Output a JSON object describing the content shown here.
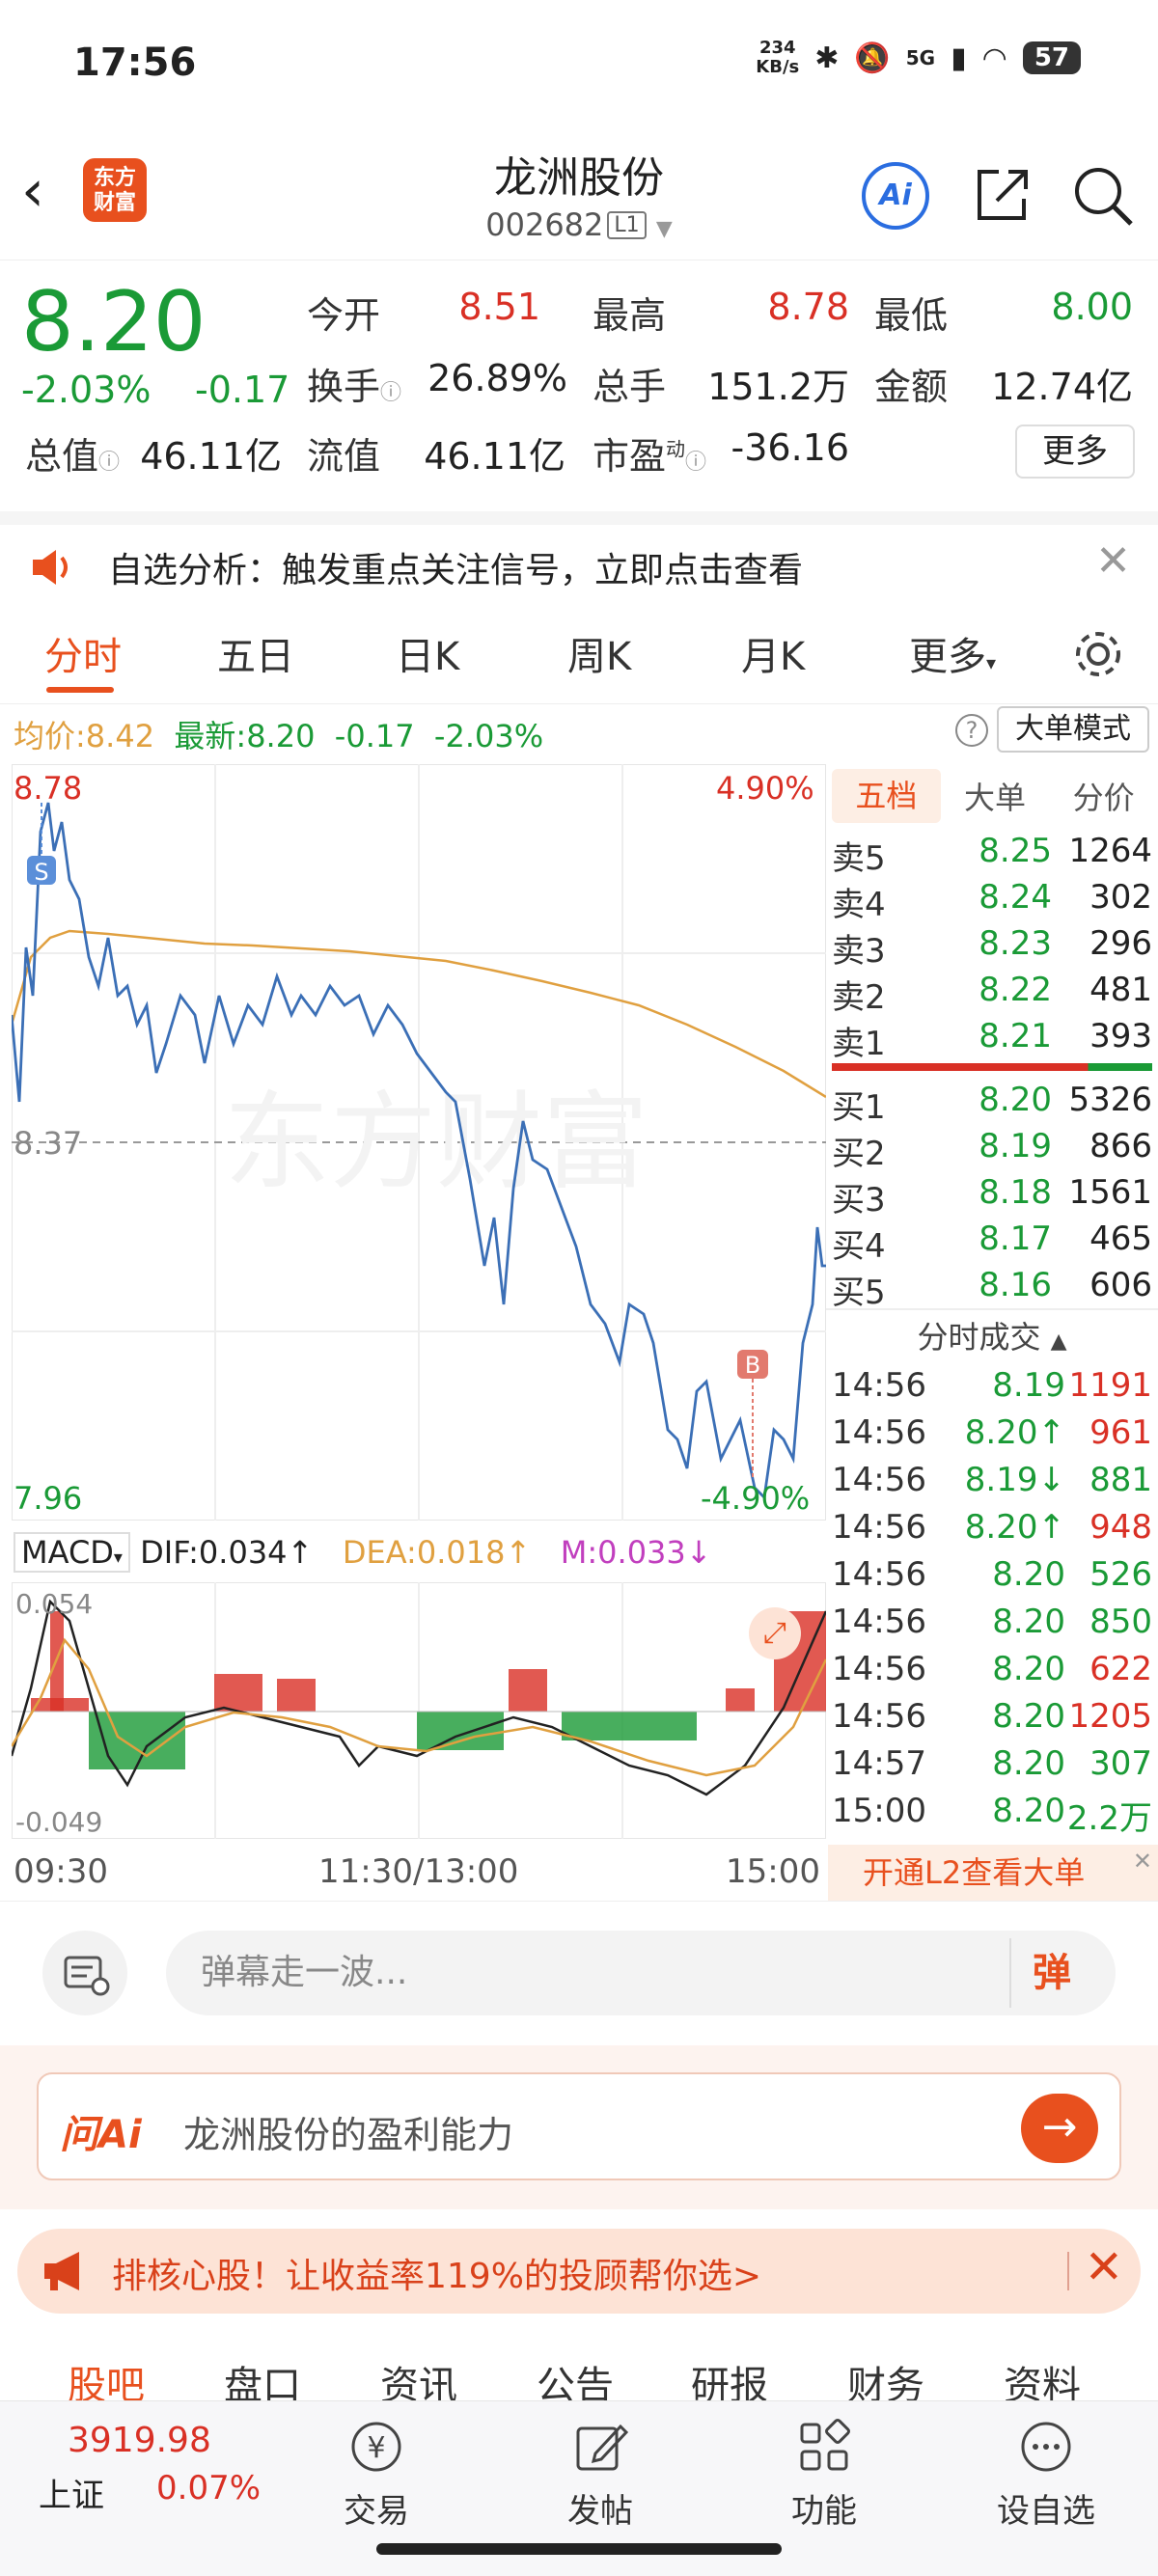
{
  "status_bar": {
    "time": "17:56",
    "speed_value": "234",
    "speed_unit": "KB/s",
    "network": "5G",
    "battery": "57"
  },
  "header": {
    "logo_line1": "东方",
    "logo_line2": "财富",
    "stock_name": "龙洲股份",
    "stock_code": "002682",
    "level": "L1",
    "ai_label": "Ai"
  },
  "quote": {
    "price": "8.20",
    "change_pct": "-2.03%",
    "change_val": "-0.17",
    "open_label": "今开",
    "open": "8.51",
    "high_label": "最高",
    "high": "8.78",
    "low_label": "最低",
    "low": "8.00",
    "turnover_label": "换手",
    "turnover": "26.89%",
    "volume_label": "总手",
    "volume": "151.2万",
    "amount_label": "金额",
    "amount": "12.74亿",
    "mktcap_label": "总值",
    "mktcap": "46.11亿",
    "float_label": "流值",
    "float": "46.11亿",
    "pe_label": "市盈",
    "pe_sup": "动",
    "pe": "-36.16",
    "more": "更多"
  },
  "alert": {
    "text": "自选分析：触发重点关注信号，立即点击查看"
  },
  "chart_tabs": [
    "分时",
    "五日",
    "日K",
    "周K",
    "月K",
    "更多"
  ],
  "avg_row": {
    "avg_label": "均价:",
    "avg": "8.42",
    "latest_label": "最新:",
    "latest": "8.20",
    "chg": "-0.17",
    "pct": "-2.03%",
    "big_order": "大单模式"
  },
  "price_axis": {
    "top": "8.78",
    "mid": "8.37",
    "bottom": "7.96",
    "top_pct": "4.90%",
    "bottom_pct": "-4.90%"
  },
  "markers": {
    "sell": "S",
    "buy": "B"
  },
  "macd": {
    "label": "MACD",
    "dif": "DIF:0.034",
    "dea": "DEA:0.018",
    "m": "M:0.033",
    "top": "0.054",
    "bottom": "-0.049"
  },
  "time_axis": [
    "09:30",
    "11:30/13:00",
    "15:00"
  ],
  "order_book": {
    "tabs": [
      "五档",
      "大单",
      "分价"
    ],
    "asks": [
      {
        "label": "卖5",
        "price": "8.25",
        "vol": "1264"
      },
      {
        "label": "卖4",
        "price": "8.24",
        "vol": "302"
      },
      {
        "label": "卖3",
        "price": "8.23",
        "vol": "296"
      },
      {
        "label": "卖2",
        "price": "8.22",
        "vol": "481"
      },
      {
        "label": "卖1",
        "price": "8.21",
        "vol": "393"
      }
    ],
    "bids": [
      {
        "label": "买1",
        "price": "8.20",
        "vol": "5326"
      },
      {
        "label": "买2",
        "price": "8.19",
        "vol": "866"
      },
      {
        "label": "买3",
        "price": "8.18",
        "vol": "1561"
      },
      {
        "label": "买4",
        "price": "8.17",
        "vol": "465"
      },
      {
        "label": "买5",
        "price": "8.16",
        "vol": "606"
      }
    ],
    "trades_title": "分时成交",
    "trades": [
      {
        "time": "14:56",
        "price": "8.19",
        "vol": "1191"
      },
      {
        "time": "14:56",
        "price": "8.20↑",
        "vol": "961"
      },
      {
        "time": "14:56",
        "price": "8.19↓",
        "vol": "881"
      },
      {
        "time": "14:56",
        "price": "8.20↑",
        "vol": "948"
      },
      {
        "time": "14:56",
        "price": "8.20",
        "vol": "526"
      },
      {
        "time": "14:56",
        "price": "8.20",
        "vol": "850"
      },
      {
        "time": "14:56",
        "price": "8.20",
        "vol": "622"
      },
      {
        "time": "14:56",
        "price": "8.20",
        "vol": "1205"
      },
      {
        "time": "14:57",
        "price": "8.20",
        "vol": "307"
      },
      {
        "time": "15:00",
        "price": "8.20",
        "vol": "2.2万"
      }
    ],
    "l2_banner": "开通L2查看大单"
  },
  "comment": {
    "placeholder": "弹幕走一波...",
    "danmu": "弹"
  },
  "ask_ai": {
    "label": "问Ai",
    "query": "龙洲股份的盈利能力"
  },
  "promo": {
    "text": "排核心股！让收益率119%的投顾帮你选>"
  },
  "content_tabs": [
    "股吧",
    "盘口",
    "资讯",
    "公告",
    "研报",
    "财务",
    "资料"
  ],
  "bottom_bar": {
    "index_value": "3919.98",
    "index_name": "上证",
    "index_change": "0.07%",
    "items": [
      "交易",
      "发帖",
      "功能",
      "设自选"
    ]
  },
  "colors": {
    "up": "#d93025",
    "down": "#1a9a36",
    "accent": "#e8501e",
    "price_line": "#3b6fb6",
    "avg_line": "#e0a040"
  }
}
